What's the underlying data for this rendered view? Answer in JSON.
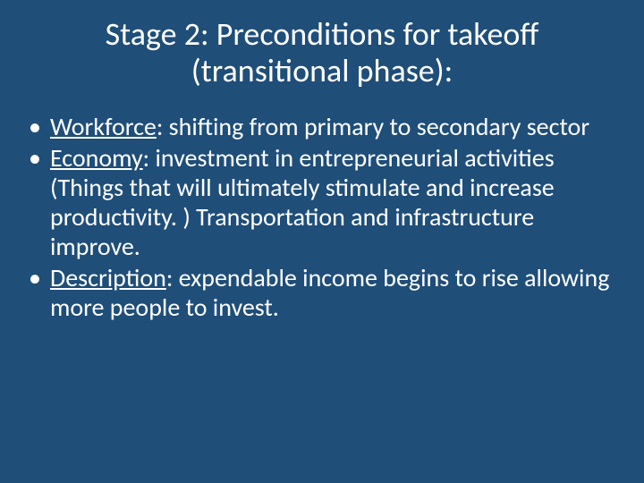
{
  "slide": {
    "background_color": "#1f4e79",
    "text_color": "#ffffff",
    "font_family": "Calibri",
    "title": {
      "line1": "Stage 2: Preconditions for takeoff",
      "line2": "(transitional phase):",
      "fontsize": 36,
      "align": "center"
    },
    "bullets": [
      {
        "label": "Workforce",
        "text": ": shifting from primary to secondary sector"
      },
      {
        "label": "Economy",
        "text": ": investment in entrepreneurial activities (Things that will ultimately stimulate and increase productivity. )  Transportation and infrastructure improve."
      },
      {
        "label": "Description",
        "text": ": expendable income begins to rise allowing more people to invest."
      }
    ],
    "bullet_fontsize": 28
  }
}
